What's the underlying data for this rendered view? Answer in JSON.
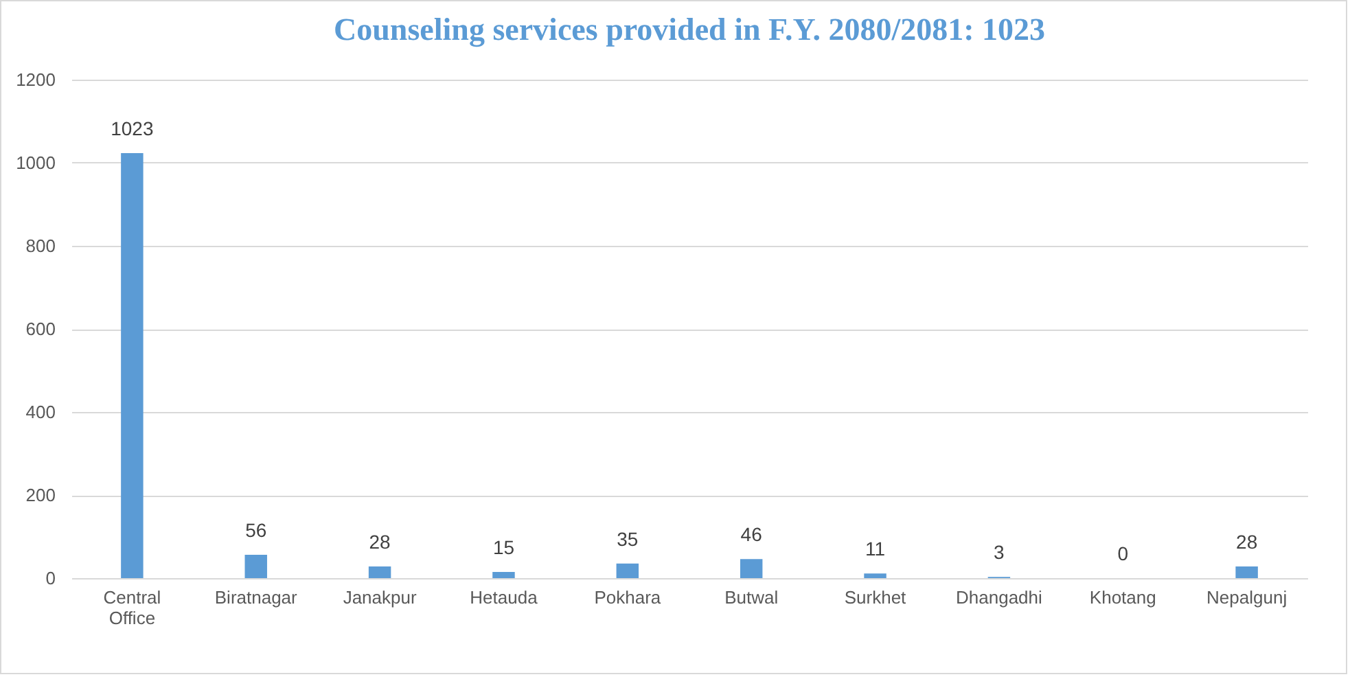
{
  "chart_data": {
    "type": "bar",
    "title": "Counseling services provided  in F.Y. 2080/2081: 1023",
    "categories": [
      "Central Office",
      "Biratnagar",
      "Janakpur",
      "Hetauda",
      "Pokhara",
      "Butwal",
      "Surkhet",
      "Dhangadhi",
      "Khotang",
      "Nepalgunj"
    ],
    "values": [
      1023,
      56,
      28,
      15,
      35,
      46,
      11,
      3,
      0,
      28
    ],
    "color": "#5b9bd5",
    "ylim": [
      0,
      1200
    ],
    "yticks": [
      0,
      200,
      400,
      600,
      800,
      1000,
      1200
    ],
    "grid": "y",
    "data_labels": true
  }
}
